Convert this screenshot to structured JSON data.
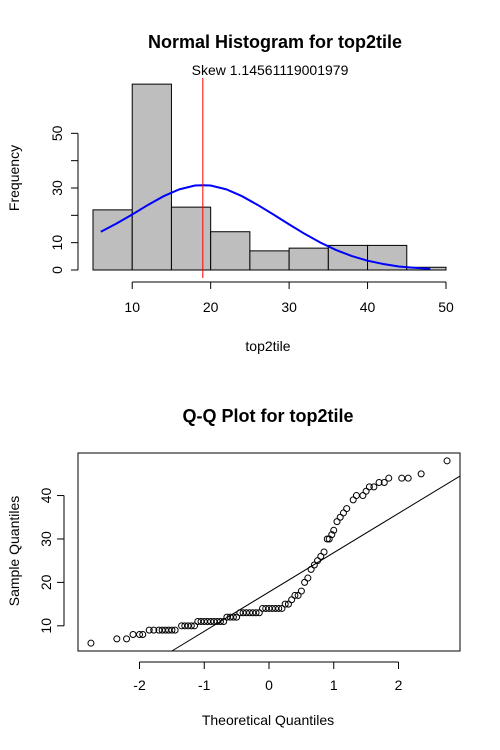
{
  "chart_data": [
    {
      "type": "bar",
      "title": "Normal Histogram for top2tile",
      "subtitle": "Skew 1.14561119001979",
      "xlabel": "top2tile",
      "ylabel": "Frequency",
      "bin_edges": [
        5,
        10,
        15,
        20,
        25,
        30,
        35,
        40,
        45,
        50
      ],
      "values": [
        22,
        68,
        23,
        14,
        7,
        8,
        9,
        9,
        1
      ],
      "x_ticks": [
        10,
        20,
        30,
        40,
        50
      ],
      "y_ticks": [
        0,
        10,
        30,
        50
      ],
      "xlim": [
        5,
        50
      ],
      "ylim": [
        0,
        60
      ],
      "bar_color": "#bebebe",
      "vline": {
        "x": 19,
        "color": "#ff0000"
      },
      "normal_curve": {
        "color": "#0000ff",
        "x": [
          6,
          8,
          10,
          12,
          14,
          16,
          18,
          19,
          20,
          22,
          24,
          26,
          28,
          30,
          32,
          34,
          36,
          38,
          40,
          42,
          44,
          46,
          48
        ],
        "y": [
          14,
          17,
          20.3,
          23.8,
          27,
          29.5,
          30.9,
          31,
          30.9,
          29.5,
          27,
          23.8,
          20.3,
          16.7,
          13.2,
          10,
          7.3,
          5.1,
          3.4,
          2.2,
          1.3,
          0.8,
          0.4
        ]
      },
      "grid": false
    },
    {
      "type": "scatter",
      "title": "Q-Q Plot for top2tile",
      "xlabel": "Theoretical Quantiles",
      "ylabel": "Sample Quantiles",
      "x_ticks": [
        -2,
        -1,
        0,
        1,
        2
      ],
      "y_ticks": [
        10,
        20,
        30,
        40
      ],
      "xlim": [
        -2.95,
        2.95
      ],
      "ylim": [
        4.2,
        49.8
      ],
      "reference_line": {
        "x": [
          -1.5,
          2.95
        ],
        "y": [
          4.2,
          44.5
        ],
        "color": "#000000"
      },
      "points": [
        [
          -2.75,
          6
        ],
        [
          -2.35,
          7
        ],
        [
          -2.2,
          7
        ],
        [
          -2.1,
          8
        ],
        [
          -2.0,
          8
        ],
        [
          -1.95,
          8
        ],
        [
          -1.85,
          9
        ],
        [
          -1.78,
          9
        ],
        [
          -1.7,
          9
        ],
        [
          -1.65,
          9
        ],
        [
          -1.6,
          9
        ],
        [
          -1.55,
          9
        ],
        [
          -1.5,
          9
        ],
        [
          -1.45,
          9
        ],
        [
          -1.35,
          10
        ],
        [
          -1.3,
          10
        ],
        [
          -1.25,
          10
        ],
        [
          -1.2,
          10
        ],
        [
          -1.15,
          10
        ],
        [
          -1.1,
          11
        ],
        [
          -1.05,
          11
        ],
        [
          -1.0,
          11
        ],
        [
          -0.95,
          11
        ],
        [
          -0.9,
          11
        ],
        [
          -0.85,
          11
        ],
        [
          -0.8,
          11
        ],
        [
          -0.75,
          11
        ],
        [
          -0.7,
          11
        ],
        [
          -0.65,
          12
        ],
        [
          -0.6,
          12
        ],
        [
          -0.55,
          12
        ],
        [
          -0.5,
          12
        ],
        [
          -0.45,
          13
        ],
        [
          -0.4,
          13
        ],
        [
          -0.35,
          13
        ],
        [
          -0.3,
          13
        ],
        [
          -0.25,
          13
        ],
        [
          -0.2,
          13
        ],
        [
          -0.15,
          13
        ],
        [
          -0.1,
          14
        ],
        [
          -0.05,
          14
        ],
        [
          0.0,
          14
        ],
        [
          0.05,
          14
        ],
        [
          0.1,
          14
        ],
        [
          0.15,
          14
        ],
        [
          0.2,
          14
        ],
        [
          0.25,
          15
        ],
        [
          0.3,
          15
        ],
        [
          0.35,
          16
        ],
        [
          0.4,
          17
        ],
        [
          0.45,
          17
        ],
        [
          0.5,
          18
        ],
        [
          0.55,
          20
        ],
        [
          0.6,
          21
        ],
        [
          0.65,
          23
        ],
        [
          0.7,
          24
        ],
        [
          0.75,
          25
        ],
        [
          0.8,
          26
        ],
        [
          0.85,
          27
        ],
        [
          0.9,
          30
        ],
        [
          0.93,
          30
        ],
        [
          0.97,
          31
        ],
        [
          1.0,
          32
        ],
        [
          1.05,
          34
        ],
        [
          1.1,
          35
        ],
        [
          1.15,
          36
        ],
        [
          1.2,
          37
        ],
        [
          1.3,
          39
        ],
        [
          1.35,
          40
        ],
        [
          1.45,
          40
        ],
        [
          1.5,
          41
        ],
        [
          1.55,
          42
        ],
        [
          1.62,
          42
        ],
        [
          1.7,
          43
        ],
        [
          1.78,
          43
        ],
        [
          1.85,
          44
        ],
        [
          2.05,
          44
        ],
        [
          2.15,
          44
        ],
        [
          2.35,
          45
        ],
        [
          2.75,
          48
        ]
      ],
      "grid": false
    }
  ]
}
